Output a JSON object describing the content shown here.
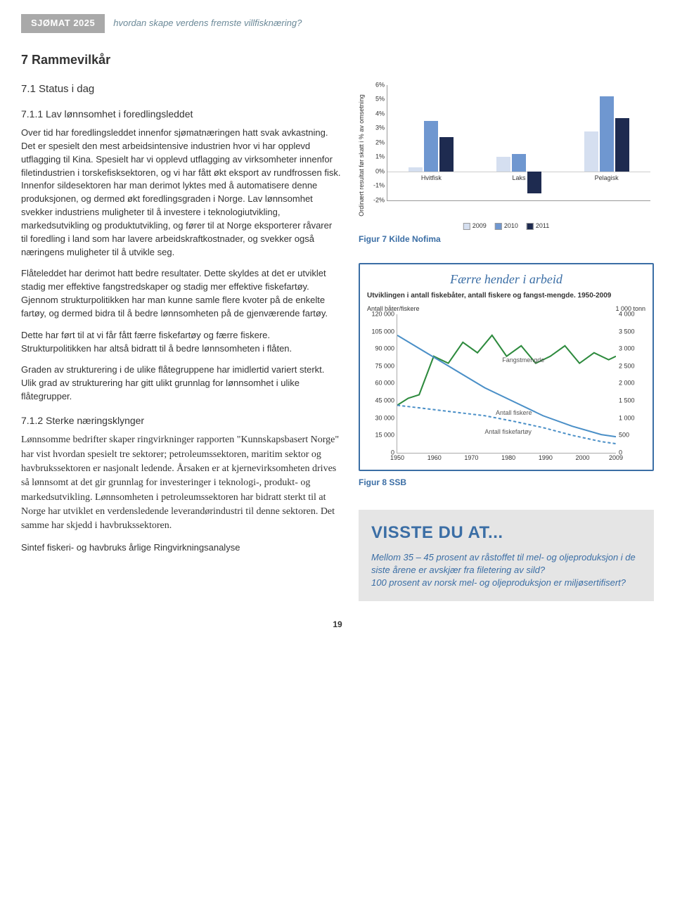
{
  "header": {
    "tag": "SJØMAT 2025",
    "subtitle": "hvordan skape verdens fremste villfisknæring?"
  },
  "chapter": {
    "num": "7",
    "title": "Rammevilkår"
  },
  "section1": {
    "num": "7.1",
    "title": "Status i dag"
  },
  "sub1": {
    "num": "7.1.1",
    "title": "Lav lønnsomhet i foredlingsleddet"
  },
  "para1": "Over tid har foredlingsleddet innenfor sjømatnæringen hatt svak avkastning. Det er spesielt den mest arbeidsintensive industrien hvor vi har opplevd utflagging til Kina. Spesielt har vi opplevd utflagging av virksomheter innenfor filetindustrien i torskefisksektoren, og vi har fått økt eksport av rundfrossen fisk. Innenfor sildesektoren har man derimot lyktes med å automatisere denne produksjonen, og dermed økt foredlingsgraden i Norge. Lav lønnsomhet svekker industriens muligheter til å investere i teknologiutvikling, markedsutvikling og produktutvikling, og fører til at Norge eksporterer råvarer til foredling i land som har lavere arbeidskraftkostnader, og svekker også næringens muligheter til å utvikle seg.",
  "para2": "Flåteleddet har derimot hatt bedre resultater. Dette skyldes at det er utviklet stadig mer effektive fangstredskaper og stadig mer effektive fiskefartøy. Gjennom strukturpolitikken har man kunne samle flere kvoter på de enkelte fartøy, og dermed bidra til å bedre lønnsomheten på de gjenværende fartøy.",
  "para3": "Dette har ført til at vi får fått færre fiskefartøy og færre fiskere. Strukturpolitikken har altså bidratt til å bedre lønnsomheten i flåten.",
  "para4": "Graden av strukturering i de ulike flåtegruppene har imidlertid variert sterkt. Ulik grad av strukturering har gitt ulikt grunnlag for lønnsomhet i ulike flåtegrupper.",
  "sub2": {
    "num": "7.1.2",
    "title": "Sterke næringsklynger"
  },
  "para5": "Lønnsomme bedrifter skaper ringvirkninger rapporten \"Kunnskapsbasert Norge\" har vist hvordan spesielt tre sektorer; petroleumssektoren, maritim sektor og havbrukssektoren er nasjonalt ledende. Årsaken er at kjernevirksomheten drives så lønnsomt at det gir grunnlag for investeringer i teknologi-, produkt- og markedsutvikling. Lønnsomheten i petroleumssektoren har bidratt sterkt til at Norge har utviklet en verdensledende leverandørindustri til denne sektoren. Det samme har skjedd i havbrukssektoren.",
  "para6": "Sintef fiskeri- og havbruks årlige Ringvirkningsanalyse",
  "chart1": {
    "type": "bar-grouped",
    "y_label": "Ordinært resultat før skatt i % av omsetning",
    "ylim": [
      -2,
      6
    ],
    "yticks": [
      "6%",
      "5%",
      "4%",
      "3%",
      "2%",
      "1%",
      "0%",
      "-1%",
      "-2%"
    ],
    "categories": [
      "Hvitfisk",
      "Laks",
      "Pelagisk"
    ],
    "series": [
      {
        "name": "2009",
        "color": "#d5dff0",
        "values": [
          0.3,
          1.0,
          2.8
        ]
      },
      {
        "name": "2010",
        "color": "#6f97d0",
        "values": [
          3.5,
          1.2,
          5.2
        ]
      },
      {
        "name": "2011",
        "color": "#1e2b50",
        "values": [
          2.4,
          -1.5,
          3.7
        ]
      }
    ],
    "caption": "Figur 7 Kilde Nofima"
  },
  "chart2": {
    "title": "Færre hender i arbeid",
    "subtitle": "Utviklingen i antall fiskebåter, antall fiskere og fangst-mengde. 1950-2009",
    "left_axis_label": "Antall båter/fiskere",
    "right_axis_label": "1 000 tonn",
    "left_ticks": [
      120000,
      105000,
      90000,
      75000,
      60000,
      45000,
      30000,
      15000,
      0
    ],
    "left_tick_labels": [
      "120 000",
      "105 000",
      "90 000",
      "75 000",
      "60 000",
      "45 000",
      "30 000",
      "15 000",
      "0"
    ],
    "right_ticks": [
      4000,
      3500,
      3000,
      2500,
      2000,
      1500,
      1000,
      500,
      0
    ],
    "right_tick_labels": [
      "4 000",
      "3 500",
      "3 000",
      "2 500",
      "2 000",
      "1 500",
      "1 000",
      "500",
      "0"
    ],
    "x_ticks": [
      1950,
      1960,
      1970,
      1980,
      1990,
      2000,
      2009
    ],
    "series_fangst": {
      "name": "Fangstmengde",
      "color": "#2d8a3d",
      "stroke_width": 2
    },
    "series_fiskere": {
      "name": "Antall fiskere",
      "color": "#4a8fc7",
      "stroke_width": 2
    },
    "series_fartoy": {
      "name": "Antall fiskefartøy",
      "color": "#4a8fc7",
      "stroke_width": 2,
      "dash": "4,3"
    },
    "caption": "Figur 8 SSB",
    "annotations": {
      "fangst": "Fangstmengde",
      "fiskere": "Antall fiskere",
      "fartoy": "Antall fiskefartøy"
    }
  },
  "callout": {
    "heading": "VISSTE DU AT...",
    "line1": "Mellom 35 – 45 prosent av råstoffet til mel- og oljeproduksjon i de siste årene er avskjær fra filetering av sild?",
    "line2": "100 prosent av norsk mel- og oljeproduksjon er miljøsertifisert?"
  },
  "page": "19"
}
